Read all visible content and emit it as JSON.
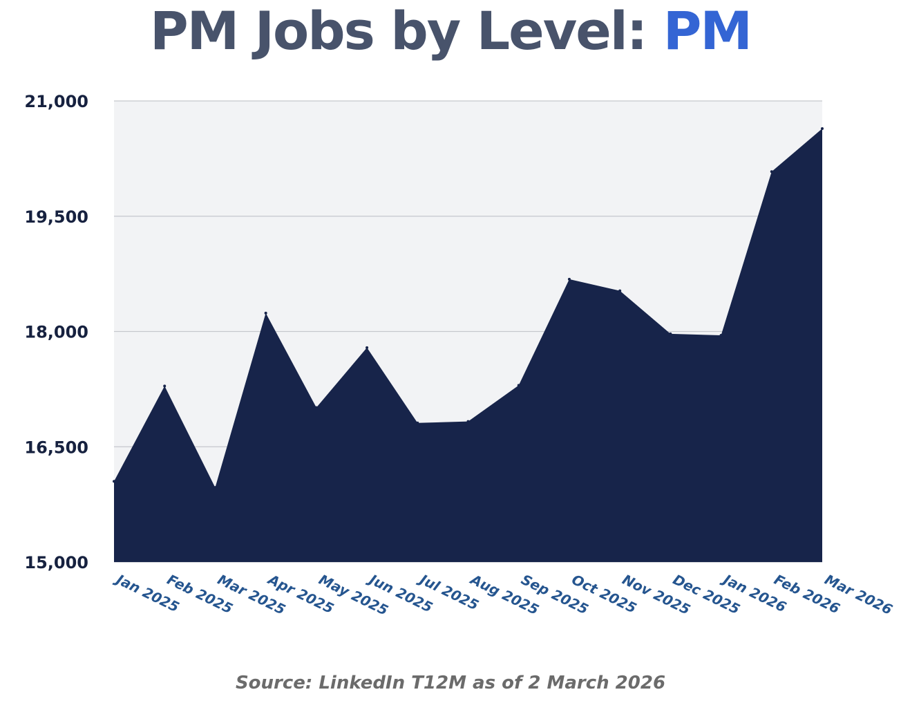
{
  "chart_data": {
    "type": "area",
    "title": "PM Jobs by Level:",
    "title_highlight": "PM",
    "xlabel": "",
    "ylabel": "",
    "categories": [
      "Jan 2025",
      "Feb 2025",
      "Mar 2025",
      "Apr 2025",
      "May 2025",
      "Jun 2025",
      "Jul 2025",
      "Aug 2025",
      "Sep 2025",
      "Oct 2025",
      "Nov 2025",
      "Dec 2025",
      "Jan 2026",
      "Feb 2026",
      "Mar 2026"
    ],
    "series": [
      {
        "values": [
          16050,
          17290,
          15970,
          18240,
          17010,
          17790,
          16810,
          16830,
          17300,
          18680,
          18530,
          17970,
          17950,
          20080,
          20640
        ]
      }
    ],
    "ylim": [
      15000,
      21000
    ],
    "yticks": [
      15000,
      16500,
      18000,
      19500,
      21000
    ],
    "ytick_labels": [
      "15,000",
      "16,500",
      "18,000",
      "19,500",
      "21,000"
    ],
    "grid": true,
    "legend": "none",
    "colors": {
      "area_fill": "#17244a",
      "plot_background": "#f2f3f5",
      "grid": "#c5c7cc",
      "title": "#48536b",
      "title_highlight": "#3465d4",
      "y_tick_text": "#16213f",
      "x_tick_text": "#25558f",
      "source_text": "#6b6b6b"
    }
  },
  "source": "Source: LinkedIn T12M as of 2 March 2026"
}
